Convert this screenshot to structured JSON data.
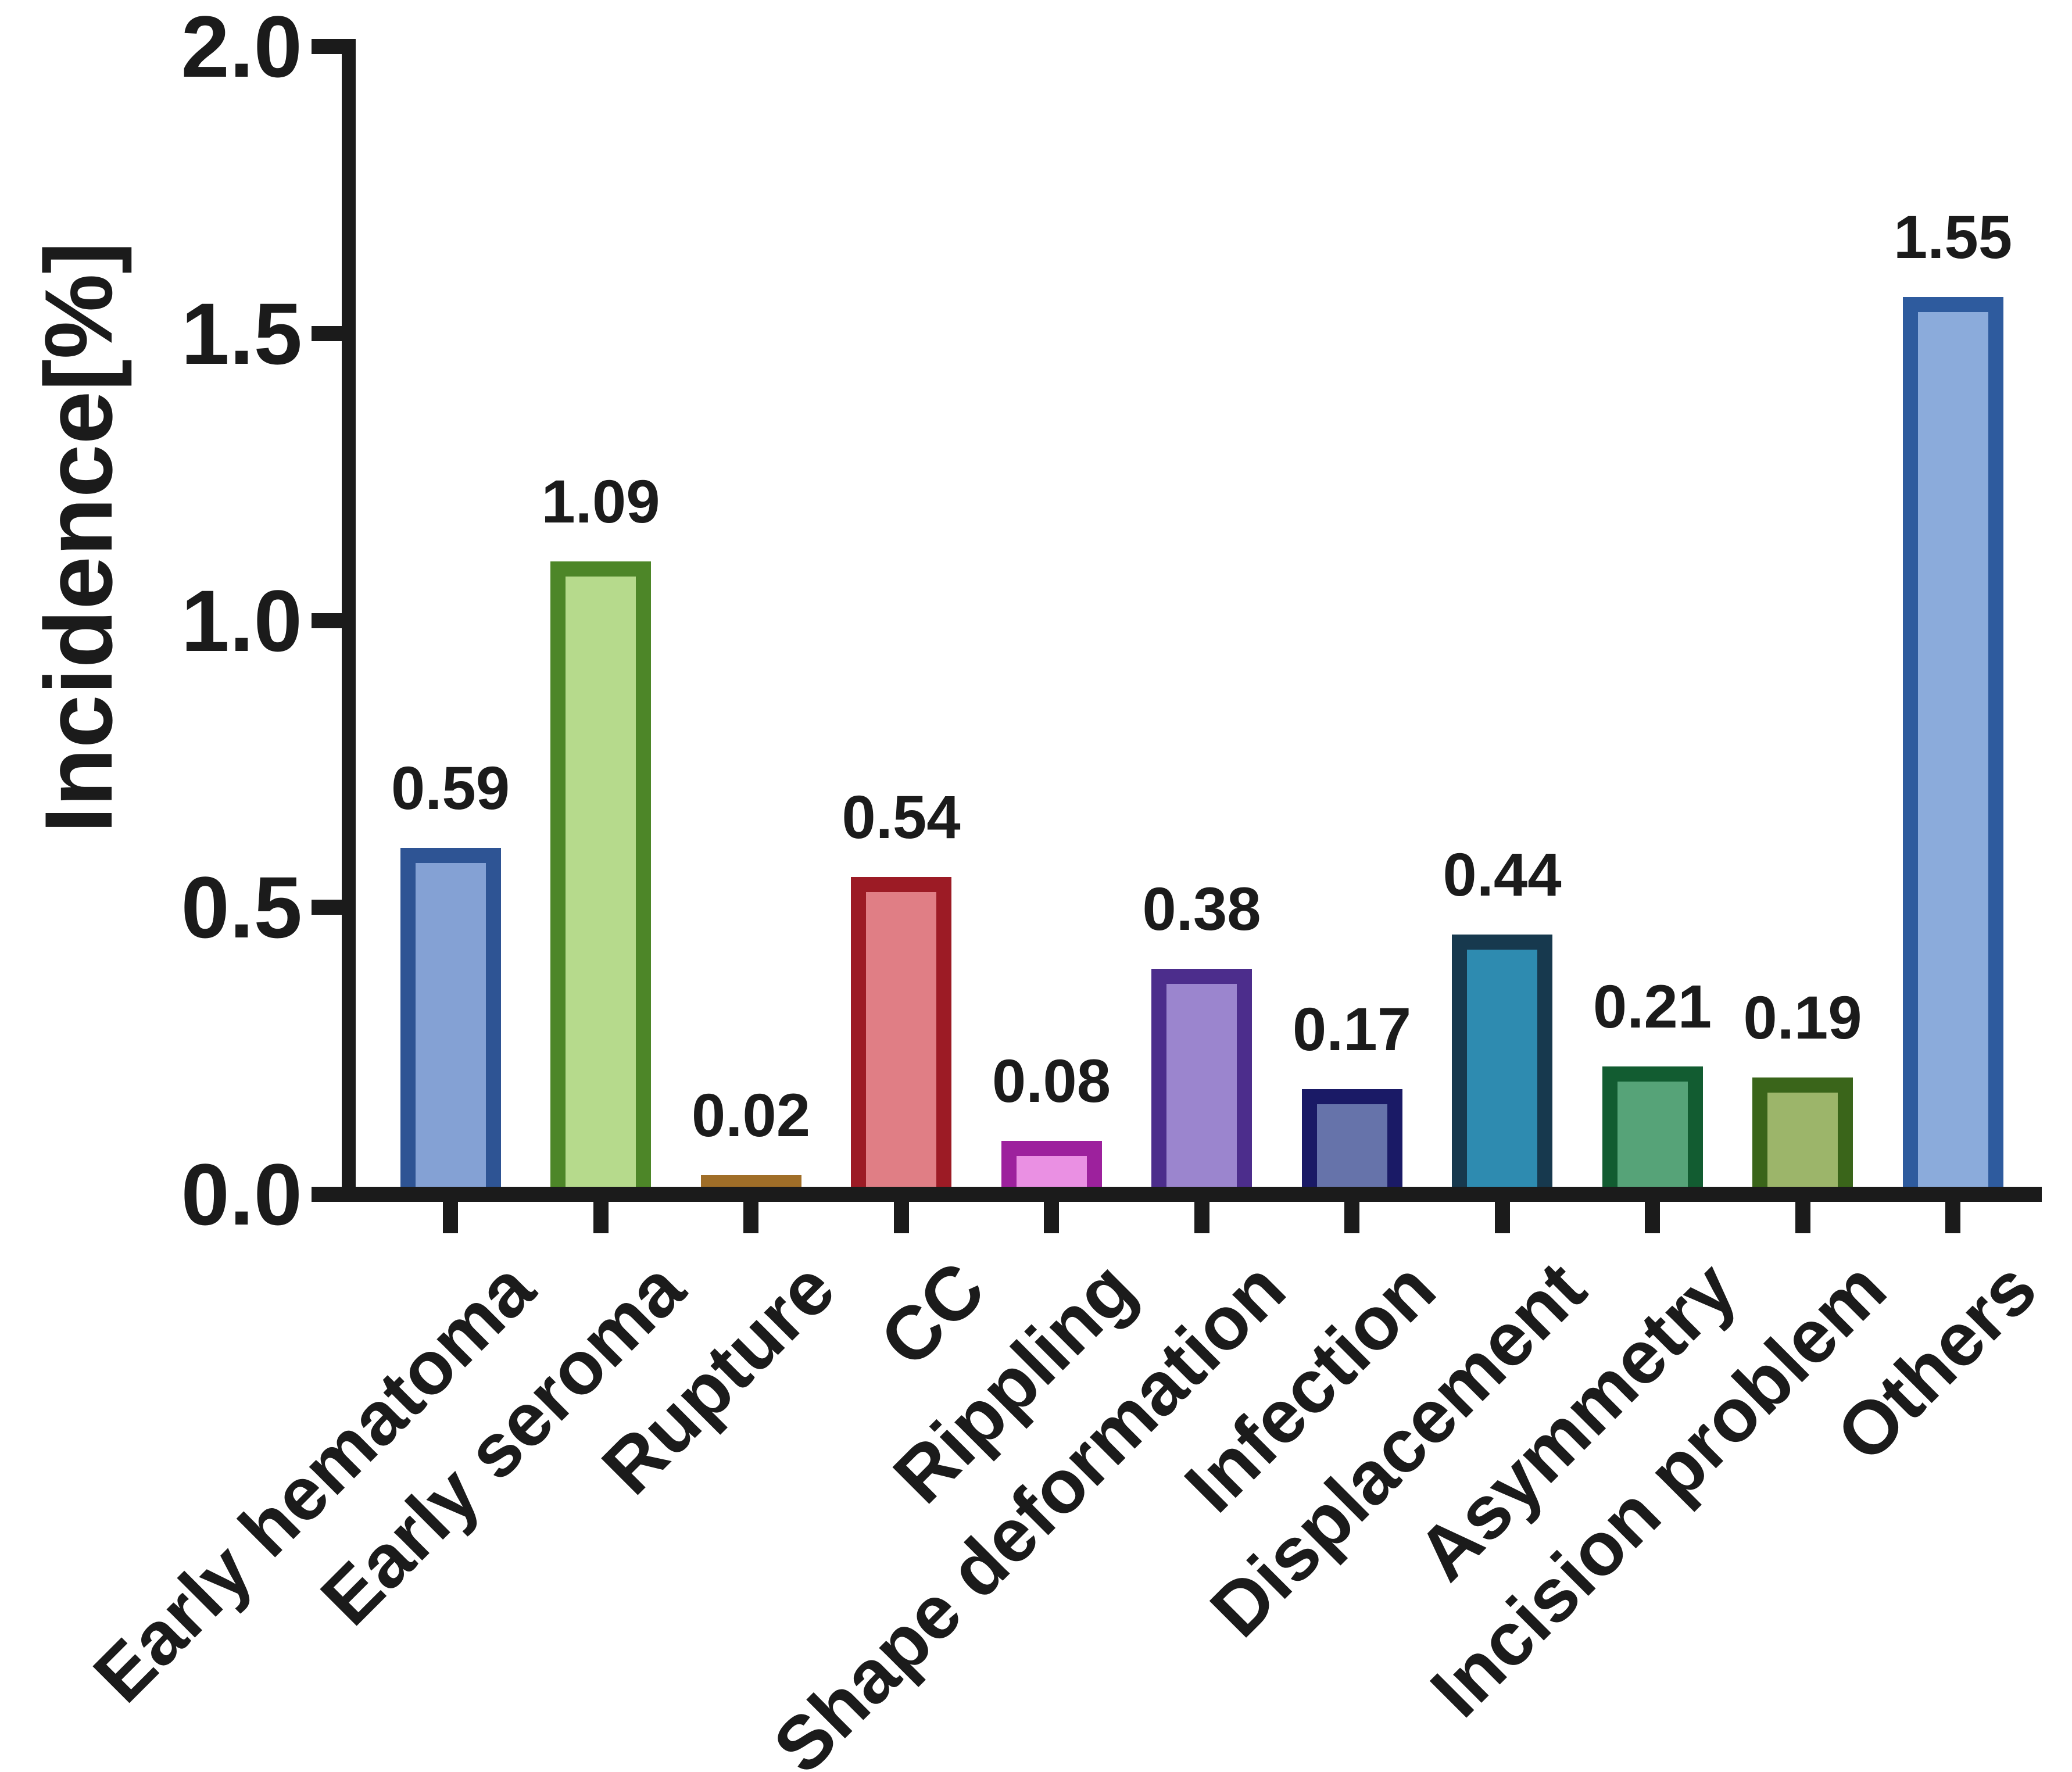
{
  "chart_data": {
    "type": "bar",
    "title": "",
    "xlabel": "",
    "ylabel": "Incidence[%]",
    "ylim": [
      0.0,
      2.0
    ],
    "ytick_labels": [
      "0.0",
      "0.5",
      "1.0",
      "1.5",
      "2.0"
    ],
    "ytick_values": [
      0.0,
      0.5,
      1.0,
      1.5,
      2.0
    ],
    "grid": false,
    "legend": false,
    "axis_color": "#1b1b1b",
    "text_color": "#1b1b1b",
    "categories": [
      "Early hematoma",
      "Early seroma",
      "Rupture",
      "CC",
      "Rippling",
      "Shape deformation",
      "Infection",
      "Displacement",
      "Asymmetry",
      "Incision problem",
      "Others"
    ],
    "values": [
      0.59,
      1.09,
      0.02,
      0.54,
      0.08,
      0.38,
      0.17,
      0.44,
      0.21,
      0.19,
      1.55
    ],
    "bars": [
      {
        "label": "Early hematoma",
        "value": 0.59,
        "value_label": "0.59",
        "border": "#2E5494",
        "fill": "#84A1D4"
      },
      {
        "label": "Early seroma",
        "value": 1.09,
        "value_label": "1.09",
        "border": "#4D8628",
        "fill": "#B6DA8C"
      },
      {
        "label": "Rupture",
        "value": 0.02,
        "value_label": "0.02",
        "border": "#A06E28",
        "fill": "#C89850"
      },
      {
        "label": "CC",
        "value": 0.54,
        "value_label": "0.54",
        "border": "#9C1B25",
        "fill": "#E07E85"
      },
      {
        "label": "Rippling",
        "value": 0.08,
        "value_label": "0.08",
        "border": "#9D219D",
        "fill": "#EA90E3"
      },
      {
        "label": "Shape deformation",
        "value": 0.38,
        "value_label": "0.38",
        "border": "#4C2D8C",
        "fill": "#9B85CE"
      },
      {
        "label": "Infection",
        "value": 0.17,
        "value_label": "0.17",
        "border": "#1A1A66",
        "fill": "#6673AA"
      },
      {
        "label": "Displacement",
        "value": 0.44,
        "value_label": "0.44",
        "border": "#17394E",
        "fill": "#2E8BB0"
      },
      {
        "label": "Asymmetry",
        "value": 0.21,
        "value_label": "0.21",
        "border": "#125C31",
        "fill": "#56A378"
      },
      {
        "label": "Incision problem",
        "value": 0.19,
        "value_label": "0.19",
        "border": "#3A651A",
        "fill": "#9CB56A"
      },
      {
        "label": "Others",
        "value": 1.55,
        "value_label": "1.55",
        "border": "#2E5B9E",
        "fill": "#8BABDB"
      }
    ]
  }
}
